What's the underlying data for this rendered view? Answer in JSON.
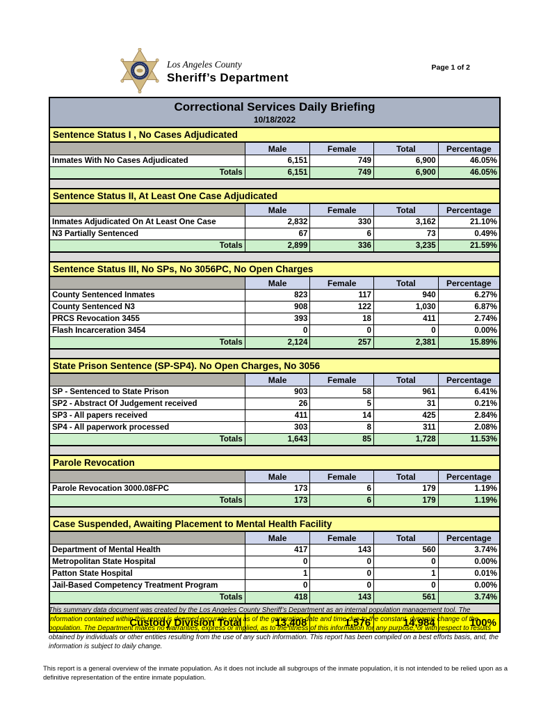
{
  "page": {
    "page_label": "Page 1 of 2"
  },
  "logo": {
    "county": "Los Angeles County",
    "department": "Sheriff’s Department"
  },
  "titlebar": {
    "title": "Correctional Services Daily Briefing",
    "date": "10/18/2022"
  },
  "columns": [
    "Male",
    "Female",
    "Total",
    "Percentage"
  ],
  "sections": [
    {
      "title": "Sentence Status I , No Cases Adjudicated",
      "rows": [
        {
          "label": "Inmates With No Cases Adjudicated",
          "male": "6,151",
          "female": "749",
          "total": "6,900",
          "pct": "46.05%"
        }
      ],
      "totals": {
        "label": "Totals",
        "male": "6,151",
        "female": "749",
        "total": "6,900",
        "pct": "46.05%"
      }
    },
    {
      "title": "Sentence Status II, At Least One Case Adjudicated",
      "rows": [
        {
          "label": "Inmates Adjudicated On At Least One Case",
          "male": "2,832",
          "female": "330",
          "total": "3,162",
          "pct": "21.10%"
        },
        {
          "label": "N3 Partially Sentenced",
          "male": "67",
          "female": "6",
          "total": "73",
          "pct": "0.49%"
        }
      ],
      "totals": {
        "label": "Totals",
        "male": "2,899",
        "female": "336",
        "total": "3,235",
        "pct": "21.59%"
      }
    },
    {
      "title": "Sentence Status III, No SPs, No 3056PC, No Open Charges",
      "rows": [
        {
          "label": "County Sentenced Inmates",
          "male": "823",
          "female": "117",
          "total": "940",
          "pct": "6.27%"
        },
        {
          "label": "County Sentenced N3",
          "male": "908",
          "female": "122",
          "total": "1,030",
          "pct": "6.87%"
        },
        {
          "label": "PRCS Revocation 3455",
          "male": "393",
          "female": "18",
          "total": "411",
          "pct": "2.74%"
        },
        {
          "label": "Flash Incarceration 3454",
          "male": "0",
          "female": "0",
          "total": "0",
          "pct": "0.00%"
        }
      ],
      "totals": {
        "label": "Totals",
        "male": "2,124",
        "female": "257",
        "total": "2,381",
        "pct": "15.89%"
      }
    },
    {
      "title": "State Prison Sentence (SP-SP4). No Open Charges, No 3056",
      "rows": [
        {
          "label": "SP - Sentenced to State Prison",
          "male": "903",
          "female": "58",
          "total": "961",
          "pct": "6.41%"
        },
        {
          "label": "SP2 - Abstract Of Judgement received",
          "male": "26",
          "female": "5",
          "total": "31",
          "pct": "0.21%"
        },
        {
          "label": "SP3 - All papers received",
          "male": "411",
          "female": "14",
          "total": "425",
          "pct": "2.84%"
        },
        {
          "label": "SP4 - All paperwork processed",
          "male": "303",
          "female": "8",
          "total": "311",
          "pct": "2.08%"
        }
      ],
      "totals": {
        "label": "Totals",
        "male": "1,643",
        "female": "85",
        "total": "1,728",
        "pct": "11.53%"
      }
    },
    {
      "title": "Parole Revocation",
      "rows": [
        {
          "label": "Parole Revocation 3000.08FPC",
          "male": "173",
          "female": "6",
          "total": "179",
          "pct": "1.19%"
        }
      ],
      "totals": {
        "label": "Totals",
        "male": "173",
        "female": "6",
        "total": "179",
        "pct": "1.19%"
      }
    },
    {
      "title": "Case Suspended, Awaiting Placement to Mental Health Facility",
      "rows": [
        {
          "label": "Department of Mental Health",
          "male": "417",
          "female": "143",
          "total": "560",
          "pct": "3.74%"
        },
        {
          "label": "Metropolitan State Hospital",
          "male": "0",
          "female": "0",
          "total": "0",
          "pct": "0.00%"
        },
        {
          "label": "Patton State Hospital",
          "male": "1",
          "female": "0",
          "total": "1",
          "pct": "0.01%"
        },
        {
          "label": "Jail-Based Competency Treatment Program",
          "male": "0",
          "female": "0",
          "total": "0",
          "pct": "0.00%"
        }
      ],
      "totals": {
        "label": "Totals",
        "male": "418",
        "female": "143",
        "total": "561",
        "pct": "3.74%"
      }
    }
  ],
  "grand_total": {
    "label": "Custody Division Total",
    "male": "13,408",
    "female": "1,576",
    "total": "14,984",
    "pct": "100%"
  },
  "disclaimer": "This summary data document was created by the Los Angeles County Sheriff’s Department as an internal population management tool.  The information contained within this report is deemed accurate only as of the generation date and time due to the constant, dynamic change of the population.  The Department makes no warranties, express or implied, as to the fitness of this information for any purpose, or with respect to results obtained by individuals or other entities resulting from the use of any such information.  This report has been compiled on a best efforts basis, and, the information is subject to daily change.",
  "footnote": "This report is a general overview of the inmate population.  As it does not include all subgroups of the inmate population, it is not intended to be relied upon as a definitive representation of the entire inmate population.",
  "colors": {
    "titlebar_bg": "#aab3c4",
    "section_header_bg": "#ffff9a",
    "column_header_bg": "#cfd6ec",
    "corner_bg": "#b3b1aa",
    "totals_bg": "#cdf0cc",
    "grand_total_bg": "#ffff00",
    "gap_bg": "#dddcda"
  }
}
